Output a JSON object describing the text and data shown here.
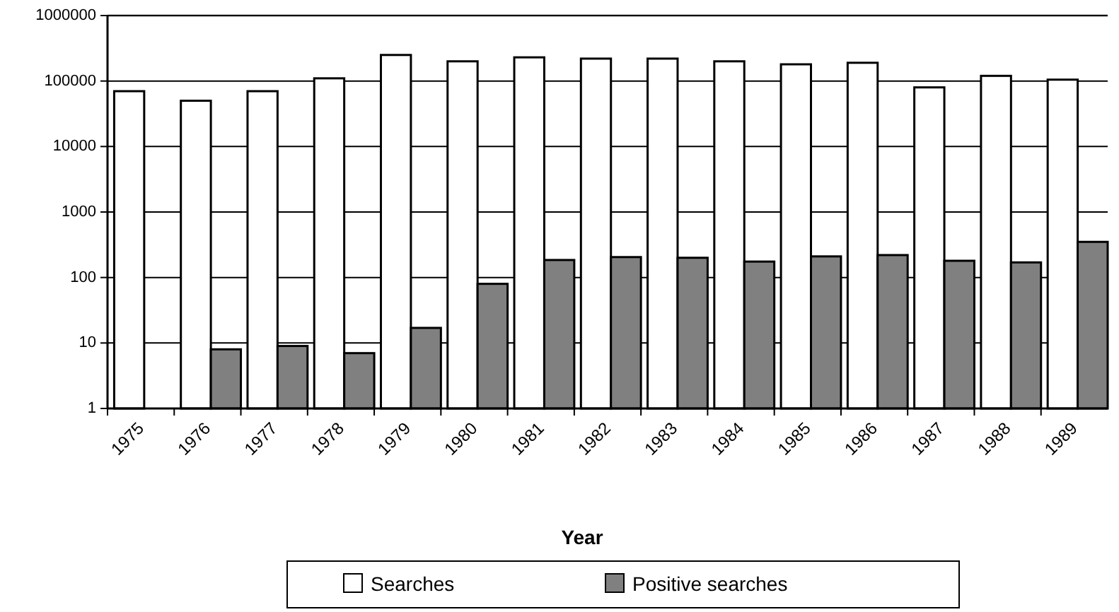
{
  "chart_data": {
    "type": "bar",
    "xlabel": "Year",
    "categories": [
      "1975",
      "1976",
      "1977",
      "1978",
      "1979",
      "1980",
      "1981",
      "1982",
      "1983",
      "1984",
      "1985",
      "1986",
      "1987",
      "1988",
      "1989"
    ],
    "series": [
      {
        "name": "Searches",
        "color": "#ffffff",
        "values": [
          70000,
          50000,
          70000,
          110000,
          250000,
          200000,
          230000,
          220000,
          220000,
          200000,
          180000,
          190000,
          80000,
          120000,
          105000
        ]
      },
      {
        "name": "Positive searches",
        "color": "#808080",
        "values": [
          null,
          8,
          9,
          7,
          17,
          80,
          185,
          205,
          200,
          175,
          210,
          220,
          180,
          170,
          350
        ]
      }
    ],
    "log": "y",
    "ylim": [
      1,
      1000000
    ],
    "yticks": [
      1,
      10,
      100,
      1000,
      10000,
      100000,
      1000000
    ],
    "grid": "y",
    "legend": "bottom"
  }
}
